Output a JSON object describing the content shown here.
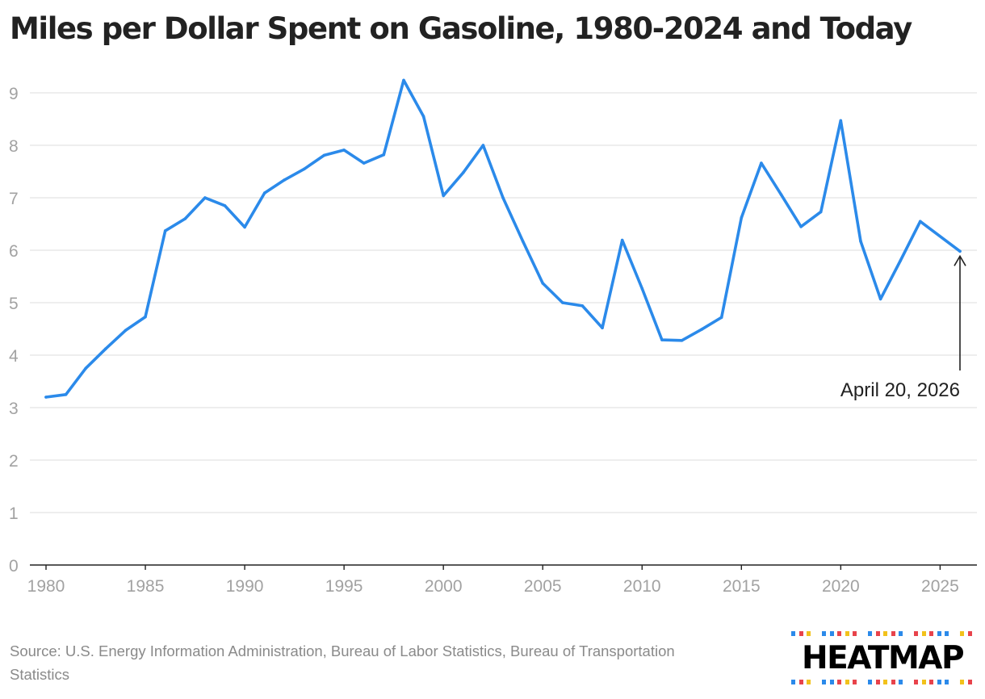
{
  "title": "Miles per Dollar Spent on Gasoline, 1980-2024 and Today",
  "source": "Source: U.S. Energy Information Administration, Bureau of Labor Statistics, Bureau of Transportation Statistics",
  "logo": {
    "text": "HEATMAP"
  },
  "colors": {
    "line": "#2b8aea",
    "grid": "#e3e3e3",
    "axis": "#222222",
    "tick": "#a2a2a2",
    "title": "#222222"
  },
  "chart_data": {
    "type": "line",
    "title": "Miles per Dollar Spent on Gasoline, 1980-2024 and Today",
    "xlabel": "",
    "ylabel": "",
    "xlim": [
      1980,
      2026
    ],
    "ylim": [
      0,
      9
    ],
    "grid": true,
    "x_ticks": [
      1980,
      1985,
      1990,
      1995,
      2000,
      2005,
      2010,
      2015,
      2020,
      2025
    ],
    "y_ticks": [
      0,
      1,
      2,
      3,
      4,
      5,
      6,
      7,
      8,
      9
    ],
    "series": [
      {
        "name": "Miles per dollar",
        "x": [
          1980,
          1981,
          1982,
          1983,
          1984,
          1985,
          1986,
          1987,
          1988,
          1989,
          1990,
          1991,
          1992,
          1993,
          1994,
          1995,
          1996,
          1997,
          1998,
          1999,
          2000,
          2001,
          2002,
          2003,
          2004,
          2005,
          2006,
          2007,
          2008,
          2009,
          2010,
          2011,
          2012,
          2013,
          2014,
          2015,
          2016,
          2017,
          2018,
          2019,
          2020,
          2021,
          2022,
          2023,
          2024,
          2026
        ],
        "values": [
          3.2,
          3.25,
          3.75,
          4.12,
          4.47,
          4.73,
          6.37,
          6.6,
          7.0,
          6.85,
          6.44,
          7.09,
          7.34,
          7.55,
          7.81,
          7.91,
          7.66,
          7.82,
          9.24,
          8.55,
          7.04,
          7.48,
          8.0,
          7.0,
          6.17,
          5.37,
          5.0,
          4.94,
          4.52,
          6.19,
          5.27,
          4.29,
          4.28,
          4.49,
          4.72,
          6.62,
          7.66,
          7.06,
          6.45,
          6.73,
          8.47,
          6.17,
          5.07,
          5.8,
          6.55,
          5.98
        ]
      }
    ],
    "annotations": [
      {
        "text": "April 20, 2026",
        "x": 2026,
        "y": 5.98
      }
    ]
  }
}
